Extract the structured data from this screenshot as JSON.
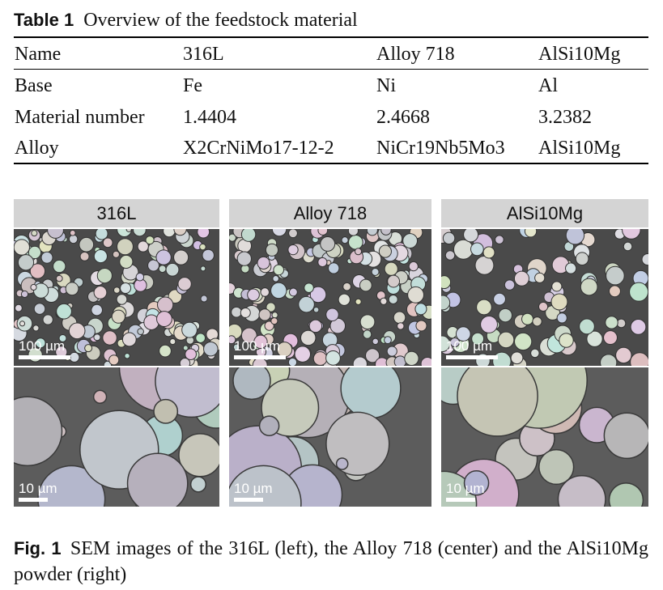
{
  "table": {
    "label": "Table 1",
    "title": "Overview of the feedstock material",
    "header": [
      "Name",
      "316L",
      "Alloy 718",
      "AlSi10Mg"
    ],
    "rows": [
      [
        "Base",
        "Fe",
        "Ni",
        "Al"
      ],
      [
        "Material number",
        "1.4404",
        "2.4668",
        "3.2382"
      ],
      [
        "Alloy",
        "X2CrNiMo17-12-2",
        "NiCr19Nb5Mo3",
        "AlSi10Mg"
      ]
    ]
  },
  "figure": {
    "panels": [
      {
        "title": "316L",
        "scale_top": "100 µm",
        "scale_bottom": "10 µm"
      },
      {
        "title": "Alloy 718",
        "scale_top": "100 µm",
        "scale_bottom": "10 µm"
      },
      {
        "title": "AlSi10Mg",
        "scale_top": "100 µm",
        "scale_bottom": "10 µm"
      }
    ],
    "label": "Fig. 1",
    "caption": "SEM images of the 316L (left), the Alloy 718 (center) and the AlSi10Mg powder (right)"
  }
}
